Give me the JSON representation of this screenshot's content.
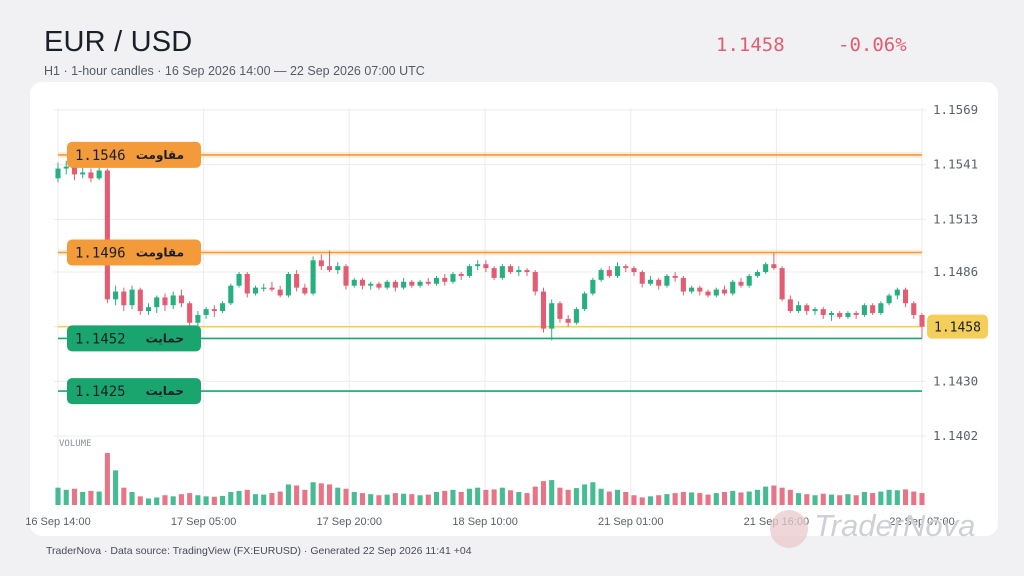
{
  "header": {
    "title": "EUR / USD",
    "subtitle": "H1 · 1-hour candles · 16 Sep 2026 14:00 — 22 Sep 2026 07:00 UTC",
    "price": "1.1458",
    "change": "-0.06%"
  },
  "footer": "TraderNova · Data source: TradingView (FX:EURUSD) · Generated 22 Sep 2026 11:41 +04",
  "watermark": "TraderNova",
  "colors": {
    "bull": "#26b07f",
    "bear": "#e35d72",
    "resistance": "#f39a3a",
    "support": "#1aa56e",
    "current": "#f3cf5a"
  },
  "chart_data": {
    "type": "candlestick",
    "title": "EUR / USD",
    "interval": "1h",
    "y_ticks": [
      "1.1569",
      "1.1541",
      "1.1513",
      "1.1486",
      "1.1458",
      "1.1430",
      "1.1402"
    ],
    "ylim": [
      1.1402,
      1.1569
    ],
    "x_ticks": [
      "16 Sep 14:00",
      "17 Sep 05:00",
      "17 Sep 20:00",
      "18 Sep 10:00",
      "21 Sep 01:00",
      "21 Sep 16:00",
      "22 Sep 07:00"
    ],
    "volume_label": "VOLUME",
    "current_price": "1.1458",
    "levels": [
      {
        "kind": "resistance",
        "price": "1.1546",
        "label": "مقاومت"
      },
      {
        "kind": "resistance",
        "price": "1.1496",
        "label": "مقاومت"
      },
      {
        "kind": "support",
        "price": "1.1452",
        "label": "حمایت"
      },
      {
        "kind": "support",
        "price": "1.1425",
        "label": "حمایت"
      }
    ],
    "candles": [
      [
        1.1534,
        1.1539,
        1.1542,
        1.1532,
        80
      ],
      [
        1.1539,
        1.154,
        1.1543,
        1.1536,
        70
      ],
      [
        1.154,
        1.1536,
        1.1541,
        1.1533,
        75
      ],
      [
        1.1536,
        1.1537,
        1.154,
        1.1534,
        60
      ],
      [
        1.1537,
        1.1534,
        1.1539,
        1.1532,
        65
      ],
      [
        1.1534,
        1.1538,
        1.154,
        1.1533,
        62
      ],
      [
        1.1538,
        1.1472,
        1.1539,
        1.147,
        240
      ],
      [
        1.1472,
        1.1476,
        1.1479,
        1.1469,
        160
      ],
      [
        1.1476,
        1.1469,
        1.1478,
        1.1466,
        80
      ],
      [
        1.1469,
        1.1477,
        1.1479,
        1.1467,
        60
      ],
      [
        1.1477,
        1.1466,
        1.1478,
        1.1464,
        40
      ],
      [
        1.1466,
        1.1468,
        1.147,
        1.1464,
        30
      ],
      [
        1.1468,
        1.1473,
        1.1474,
        1.1465,
        35
      ],
      [
        1.1473,
        1.1469,
        1.1475,
        1.1466,
        45
      ],
      [
        1.1469,
        1.1474,
        1.1476,
        1.1467,
        40
      ],
      [
        1.1474,
        1.147,
        1.1477,
        1.1468,
        50
      ],
      [
        1.147,
        1.146,
        1.1471,
        1.1458,
        55
      ],
      [
        1.146,
        1.1464,
        1.1466,
        1.1457,
        45
      ],
      [
        1.1464,
        1.1467,
        1.1468,
        1.1462,
        40
      ],
      [
        1.1467,
        1.1466,
        1.1469,
        1.1463,
        38
      ],
      [
        1.1466,
        1.147,
        1.1471,
        1.1465,
        42
      ],
      [
        1.147,
        1.1479,
        1.148,
        1.1469,
        60
      ],
      [
        1.1479,
        1.1485,
        1.1486,
        1.1478,
        65
      ],
      [
        1.1485,
        1.1475,
        1.1486,
        1.1473,
        70
      ],
      [
        1.1475,
        1.1478,
        1.1479,
        1.1474,
        50
      ],
      [
        1.1478,
        1.1478,
        1.148,
        1.1476,
        48
      ],
      [
        1.1478,
        1.1477,
        1.1481,
        1.1476,
        55
      ],
      [
        1.1477,
        1.1474,
        1.1479,
        1.1473,
        62
      ],
      [
        1.1474,
        1.1485,
        1.1486,
        1.1473,
        95
      ],
      [
        1.1485,
        1.1478,
        1.1487,
        1.1476,
        90
      ],
      [
        1.1478,
        1.1475,
        1.148,
        1.1474,
        70
      ],
      [
        1.1475,
        1.1492,
        1.1494,
        1.1474,
        105
      ],
      [
        1.1492,
        1.1489,
        1.1495,
        1.1487,
        100
      ],
      [
        1.1489,
        1.1487,
        1.1497,
        1.1486,
        95
      ],
      [
        1.1487,
        1.1489,
        1.1491,
        1.1485,
        80
      ],
      [
        1.1489,
        1.1479,
        1.149,
        1.1477,
        75
      ],
      [
        1.1479,
        1.1482,
        1.1483,
        1.1478,
        60
      ],
      [
        1.1482,
        1.1479,
        1.1483,
        1.1477,
        55
      ],
      [
        1.1479,
        1.148,
        1.1481,
        1.1477,
        50
      ],
      [
        1.148,
        1.1478,
        1.1481,
        1.1477,
        45
      ],
      [
        1.1478,
        1.1481,
        1.1482,
        1.1477,
        48
      ],
      [
        1.1481,
        1.1478,
        1.1482,
        1.1476,
        55
      ],
      [
        1.1478,
        1.1481,
        1.1483,
        1.1477,
        52
      ],
      [
        1.1481,
        1.1479,
        1.1482,
        1.1478,
        50
      ],
      [
        1.1479,
        1.1481,
        1.1482,
        1.1478,
        45
      ],
      [
        1.1481,
        1.148,
        1.1483,
        1.1479,
        48
      ],
      [
        1.148,
        1.1483,
        1.1484,
        1.1479,
        60
      ],
      [
        1.1483,
        1.1481,
        1.1485,
        1.1479,
        65
      ],
      [
        1.1481,
        1.1485,
        1.1486,
        1.148,
        70
      ],
      [
        1.1485,
        1.1484,
        1.1486,
        1.1482,
        60
      ],
      [
        1.1484,
        1.1489,
        1.149,
        1.1483,
        75
      ],
      [
        1.1489,
        1.149,
        1.1492,
        1.1487,
        80
      ],
      [
        1.149,
        1.1488,
        1.1492,
        1.1486,
        70
      ],
      [
        1.1488,
        1.1483,
        1.1489,
        1.1482,
        72
      ],
      [
        1.1483,
        1.1489,
        1.149,
        1.1482,
        80
      ],
      [
        1.1489,
        1.1486,
        1.149,
        1.1485,
        68
      ],
      [
        1.1486,
        1.1487,
        1.1489,
        1.1484,
        60
      ],
      [
        1.1487,
        1.1486,
        1.1488,
        1.1484,
        55
      ],
      [
        1.1486,
        1.1476,
        1.1487,
        1.1474,
        85
      ],
      [
        1.1476,
        1.1457,
        1.1478,
        1.1455,
        110
      ],
      [
        1.1457,
        1.147,
        1.1472,
        1.1451,
        115
      ],
      [
        1.147,
        1.1462,
        1.1471,
        1.146,
        80
      ],
      [
        1.1462,
        1.146,
        1.1464,
        1.1458,
        70
      ],
      [
        1.146,
        1.1467,
        1.1468,
        1.1459,
        78
      ],
      [
        1.1467,
        1.1475,
        1.1476,
        1.1466,
        95
      ],
      [
        1.1475,
        1.1482,
        1.1483,
        1.1474,
        105
      ],
      [
        1.1482,
        1.1487,
        1.1488,
        1.1481,
        75
      ],
      [
        1.1487,
        1.1484,
        1.1489,
        1.1483,
        62
      ],
      [
        1.1484,
        1.1489,
        1.1491,
        1.1483,
        70
      ],
      [
        1.1489,
        1.1488,
        1.149,
        1.1486,
        60
      ],
      [
        1.1488,
        1.1486,
        1.1489,
        1.1484,
        45
      ],
      [
        1.1486,
        1.148,
        1.1487,
        1.1478,
        35
      ],
      [
        1.148,
        1.1482,
        1.1484,
        1.1479,
        40
      ],
      [
        1.1482,
        1.1479,
        1.1483,
        1.1477,
        45
      ],
      [
        1.1479,
        1.1484,
        1.1485,
        1.1478,
        50
      ],
      [
        1.1484,
        1.1483,
        1.1486,
        1.1481,
        55
      ],
      [
        1.1483,
        1.1476,
        1.1484,
        1.1474,
        60
      ],
      [
        1.1476,
        1.1478,
        1.1479,
        1.1475,
        58
      ],
      [
        1.1478,
        1.1476,
        1.1479,
        1.1474,
        55
      ],
      [
        1.1476,
        1.1474,
        1.1477,
        1.1473,
        48
      ],
      [
        1.1474,
        1.1477,
        1.1478,
        1.1473,
        55
      ],
      [
        1.1477,
        1.1475,
        1.1479,
        1.1474,
        60
      ],
      [
        1.1475,
        1.1481,
        1.1482,
        1.1474,
        65
      ],
      [
        1.1481,
        1.1479,
        1.1483,
        1.1478,
        58
      ],
      [
        1.1479,
        1.1484,
        1.1485,
        1.1478,
        62
      ],
      [
        1.1484,
        1.1486,
        1.1487,
        1.1483,
        70
      ],
      [
        1.1486,
        1.149,
        1.1491,
        1.1485,
        85
      ],
      [
        1.149,
        1.1488,
        1.1496,
        1.1487,
        90
      ],
      [
        1.1488,
        1.1472,
        1.1489,
        1.1471,
        80
      ],
      [
        1.1472,
        1.1466,
        1.1474,
        1.1465,
        70
      ],
      [
        1.1466,
        1.1469,
        1.1471,
        1.1465,
        55
      ],
      [
        1.1469,
        1.1466,
        1.147,
        1.1464,
        50
      ],
      [
        1.1466,
        1.1467,
        1.1468,
        1.1464,
        45
      ],
      [
        1.1467,
        1.1464,
        1.1468,
        1.1462,
        52
      ],
      [
        1.1464,
        1.1465,
        1.1466,
        1.1461,
        48
      ],
      [
        1.1465,
        1.1463,
        1.1466,
        1.1462,
        45
      ],
      [
        1.1463,
        1.1465,
        1.1466,
        1.1462,
        50
      ],
      [
        1.1465,
        1.1464,
        1.1466,
        1.1462,
        45
      ],
      [
        1.1464,
        1.1469,
        1.147,
        1.1463,
        60
      ],
      [
        1.1469,
        1.1465,
        1.147,
        1.1464,
        55
      ],
      [
        1.1465,
        1.147,
        1.1471,
        1.1464,
        62
      ],
      [
        1.147,
        1.1474,
        1.1475,
        1.1469,
        70
      ],
      [
        1.1474,
        1.1477,
        1.1478,
        1.1472,
        68
      ],
      [
        1.1477,
        1.147,
        1.1478,
        1.1468,
        72
      ],
      [
        1.147,
        1.1464,
        1.1471,
        1.1462,
        62
      ],
      [
        1.1464,
        1.1458,
        1.1465,
        1.1452,
        55
      ]
    ]
  }
}
